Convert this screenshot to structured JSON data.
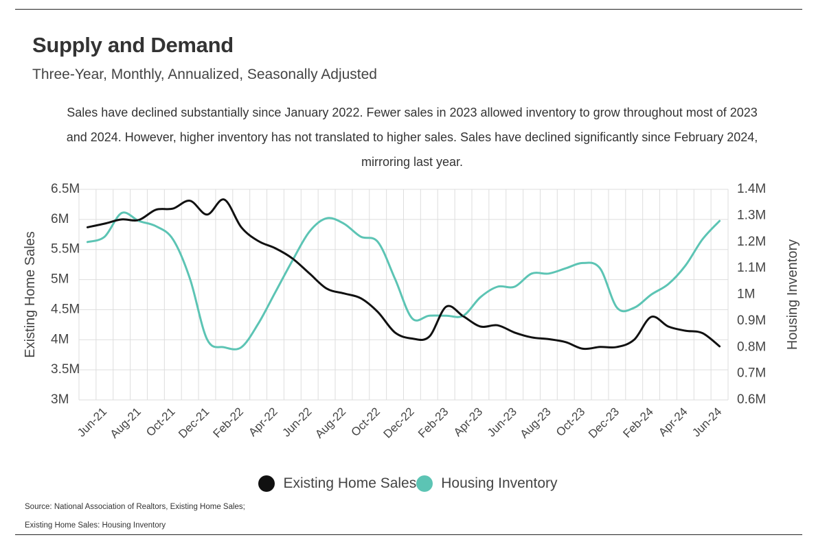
{
  "header": {
    "title": "Supply and Demand",
    "subtitle": "Three-Year, Monthly, Annualized, Seasonally Adjusted",
    "note": "Sales have declined substantially since January 2022. Fewer sales in 2023 allowed inventory to grow throughout most of 2023 and 2024. However, higher inventory has not translated to higher sales. Sales have declined significantly since February 2024, mirroring last year."
  },
  "footer": {
    "source_line1": "Source:  National Association of Realtors, Existing Home Sales;",
    "source_line2": "Existing Home Sales: Housing Inventory"
  },
  "colors": {
    "sales": "#111111",
    "inventory": "#5cc4b4",
    "grid": "#dddddd"
  },
  "chart_data": {
    "type": "line",
    "xlabel": "",
    "ylabel": "Existing Home Sales",
    "y2label": "Housing Inventory",
    "ylim": [
      3000000,
      6500000
    ],
    "y2lim": [
      600000,
      1400000
    ],
    "yticks": [
      "6.5M",
      "6M",
      "5.5M",
      "5M",
      "4.5M",
      "4M",
      "3.5M",
      "3M"
    ],
    "y2ticks": [
      "1.4M",
      "1.3M",
      "1.2M",
      "1.1M",
      "1M",
      "0.9M",
      "0.8M",
      "0.7M",
      "0.6M"
    ],
    "x": [
      "May-21",
      "Jun-21",
      "Jul-21",
      "Aug-21",
      "Sep-21",
      "Oct-21",
      "Nov-21",
      "Dec-21",
      "Jan-22",
      "Feb-22",
      "Mar-22",
      "Apr-22",
      "May-22",
      "Jun-22",
      "Jul-22",
      "Aug-22",
      "Sep-22",
      "Oct-22",
      "Nov-22",
      "Dec-22",
      "Jan-23",
      "Feb-23",
      "Mar-23",
      "Apr-23",
      "May-23",
      "Jun-23",
      "Jul-23",
      "Aug-23",
      "Sep-23",
      "Oct-23",
      "Nov-23",
      "Dec-23",
      "Jan-24",
      "Feb-24",
      "Mar-24",
      "Apr-24",
      "May-24",
      "Jun-24"
    ],
    "x_tick_labels": [
      "Jun-21",
      "Aug-21",
      "Oct-21",
      "Dec-21",
      "Feb-22",
      "Apr-22",
      "Jun-22",
      "Aug-22",
      "Oct-22",
      "Dec-22",
      "Feb-23",
      "Apr-23",
      "Jun-23",
      "Aug-23",
      "Oct-23",
      "Dec-23",
      "Feb-24",
      "Apr-24",
      "Jun-24"
    ],
    "legend_position": "bottom",
    "grid": true,
    "series": [
      {
        "name": "Existing Home Sales",
        "axis": "left",
        "values": [
          5870000,
          5930000,
          6000000,
          5990000,
          6160000,
          6180000,
          6310000,
          6080000,
          6330000,
          5870000,
          5640000,
          5520000,
          5350000,
          5100000,
          4850000,
          4770000,
          4690000,
          4460000,
          4120000,
          4020000,
          4050000,
          4550000,
          4390000,
          4220000,
          4240000,
          4120000,
          4040000,
          4010000,
          3960000,
          3850000,
          3880000,
          3880000,
          4000000,
          4380000,
          4220000,
          4150000,
          4110000,
          3890000
        ]
      },
      {
        "name": "Housing Inventory",
        "axis": "right",
        "values": [
          1200000,
          1220000,
          1310000,
          1280000,
          1260000,
          1210000,
          1060000,
          830000,
          800000,
          800000,
          890000,
          1010000,
          1130000,
          1240000,
          1290000,
          1270000,
          1220000,
          1200000,
          1060000,
          910000,
          920000,
          920000,
          920000,
          990000,
          1030000,
          1030000,
          1080000,
          1080000,
          1100000,
          1120000,
          1100000,
          950000,
          950000,
          1000000,
          1040000,
          1110000,
          1210000,
          1280000
        ]
      }
    ]
  }
}
